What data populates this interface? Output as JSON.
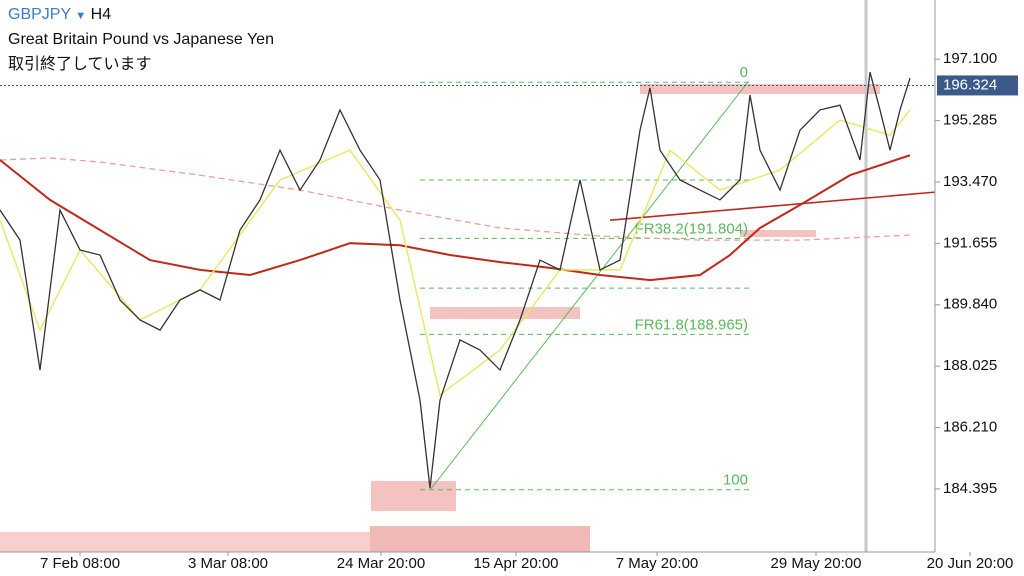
{
  "header": {
    "symbol": "GBPJPY",
    "timeframe": "H4",
    "description": "Great Britain Pound vs Japanese Yen",
    "status": "取引終了しています"
  },
  "chart_data": {
    "type": "line",
    "xlim": [
      0,
      187
    ],
    "xticks": [
      {
        "value": 16,
        "label": "7 Feb 08:00"
      },
      {
        "value": 45.6,
        "label": "3 Mar 08:00"
      },
      {
        "value": 76.2,
        "label": "24 Mar 20:00"
      },
      {
        "value": 103.2,
        "label": "15 Apr 20:00"
      },
      {
        "value": 131.4,
        "label": "7 May 20:00"
      },
      {
        "value": 163.2,
        "label": "29 May 20:00"
      },
      {
        "value": 194,
        "label": "20 Jun 20:00"
      }
    ],
    "ylim": [
      182.53,
      198.85
    ],
    "yticks": [
      {
        "value": 197.1,
        "label": "197.100"
      },
      195.285,
      {
        "value": 193.47,
        "label": "193.470"
      },
      191.655,
      {
        "value": 189.84,
        "label": "189.840"
      },
      188.025,
      {
        "value": 186.21,
        "label": "186.210"
      },
      184.395
    ],
    "current_price": 196.324,
    "series": [
      {
        "color": "#e8a0a0",
        "dashed": true,
        "width": 1.3,
        "x": [
          0,
          10,
          20,
          40,
          60,
          80,
          100,
          120,
          140,
          160,
          182
        ],
        "values": [
          194.12,
          194.18,
          194.06,
          193.67,
          193.23,
          192.64,
          192.11,
          191.87,
          191.75,
          191.75,
          191.9
        ]
      },
      {
        "color": "#c0281c",
        "dashed": false,
        "width": 2,
        "x": [
          0,
          10,
          20,
          30,
          40,
          50,
          60,
          70,
          80,
          90,
          100,
          110,
          120,
          130,
          140,
          146,
          152,
          160,
          170,
          182
        ],
        "values": [
          194.12,
          192.94,
          192.05,
          191.16,
          190.87,
          190.72,
          191.16,
          191.66,
          191.6,
          191.31,
          191.1,
          190.93,
          190.72,
          190.57,
          190.72,
          191.31,
          192.11,
          192.79,
          193.67,
          194.26
        ]
      },
      {
        "color": "#c0281c",
        "dashed": false,
        "width": 1.6,
        "x": [
          122,
          187
        ],
        "values": [
          192.34,
          193.17
        ]
      },
      {
        "color": "#e8e86a",
        "dashed": false,
        "width": 1.5,
        "x": [
          0,
          8,
          16,
          28,
          40,
          56,
          70,
          80,
          88,
          100,
          112,
          124,
          134,
          144,
          156,
          168,
          178,
          182
        ],
        "values": [
          192.34,
          189.09,
          191.46,
          189.39,
          190.28,
          193.53,
          194.41,
          192.34,
          187.17,
          188.5,
          190.87,
          190.87,
          194.41,
          193.23,
          193.82,
          195.3,
          194.85,
          195.6
        ]
      },
      {
        "color": "#333333",
        "dashed": false,
        "width": 1.3,
        "x": [
          0,
          4,
          8,
          12,
          16,
          20,
          24,
          28,
          32,
          36,
          40,
          44,
          48,
          52,
          56,
          60,
          64,
          68,
          72,
          76,
          80,
          84,
          86,
          88,
          92,
          96,
          100,
          104,
          108,
          112,
          116,
          120,
          124,
          128,
          130,
          132,
          136,
          140,
          144,
          148,
          150,
          152,
          156,
          160,
          164,
          168,
          172,
          174,
          176,
          178,
          180,
          182
        ],
        "values": [
          192.64,
          191.75,
          187.91,
          192.64,
          191.46,
          191.31,
          189.98,
          189.39,
          189.09,
          189.98,
          190.28,
          189.98,
          192.05,
          192.94,
          194.41,
          193.23,
          194.12,
          195.6,
          194.41,
          193.53,
          189.98,
          187.02,
          184.42,
          187.02,
          188.8,
          188.5,
          187.91,
          189.39,
          191.16,
          190.87,
          193.53,
          190.87,
          191.16,
          195.0,
          196.25,
          194.41,
          193.53,
          193.23,
          192.94,
          193.53,
          196.04,
          194.41,
          193.23,
          195.0,
          195.6,
          195.74,
          194.12,
          196.72,
          195.6,
          194.41,
          195.6,
          196.54
        ]
      }
    ],
    "fib_color": "#5cb85c",
    "fib_levels": [
      {
        "value": 196.42,
        "label": "0"
      },
      {
        "value": 193.53
      },
      {
        "value": 191.804,
        "label": "FR38.2(191.804)"
      },
      {
        "value": 190.33
      },
      {
        "value": 188.965,
        "label": "FR61.8(188.965)"
      },
      {
        "value": 184.37,
        "label": "100"
      }
    ],
    "fib_xlim": [
      84,
      150
    ]
  }
}
